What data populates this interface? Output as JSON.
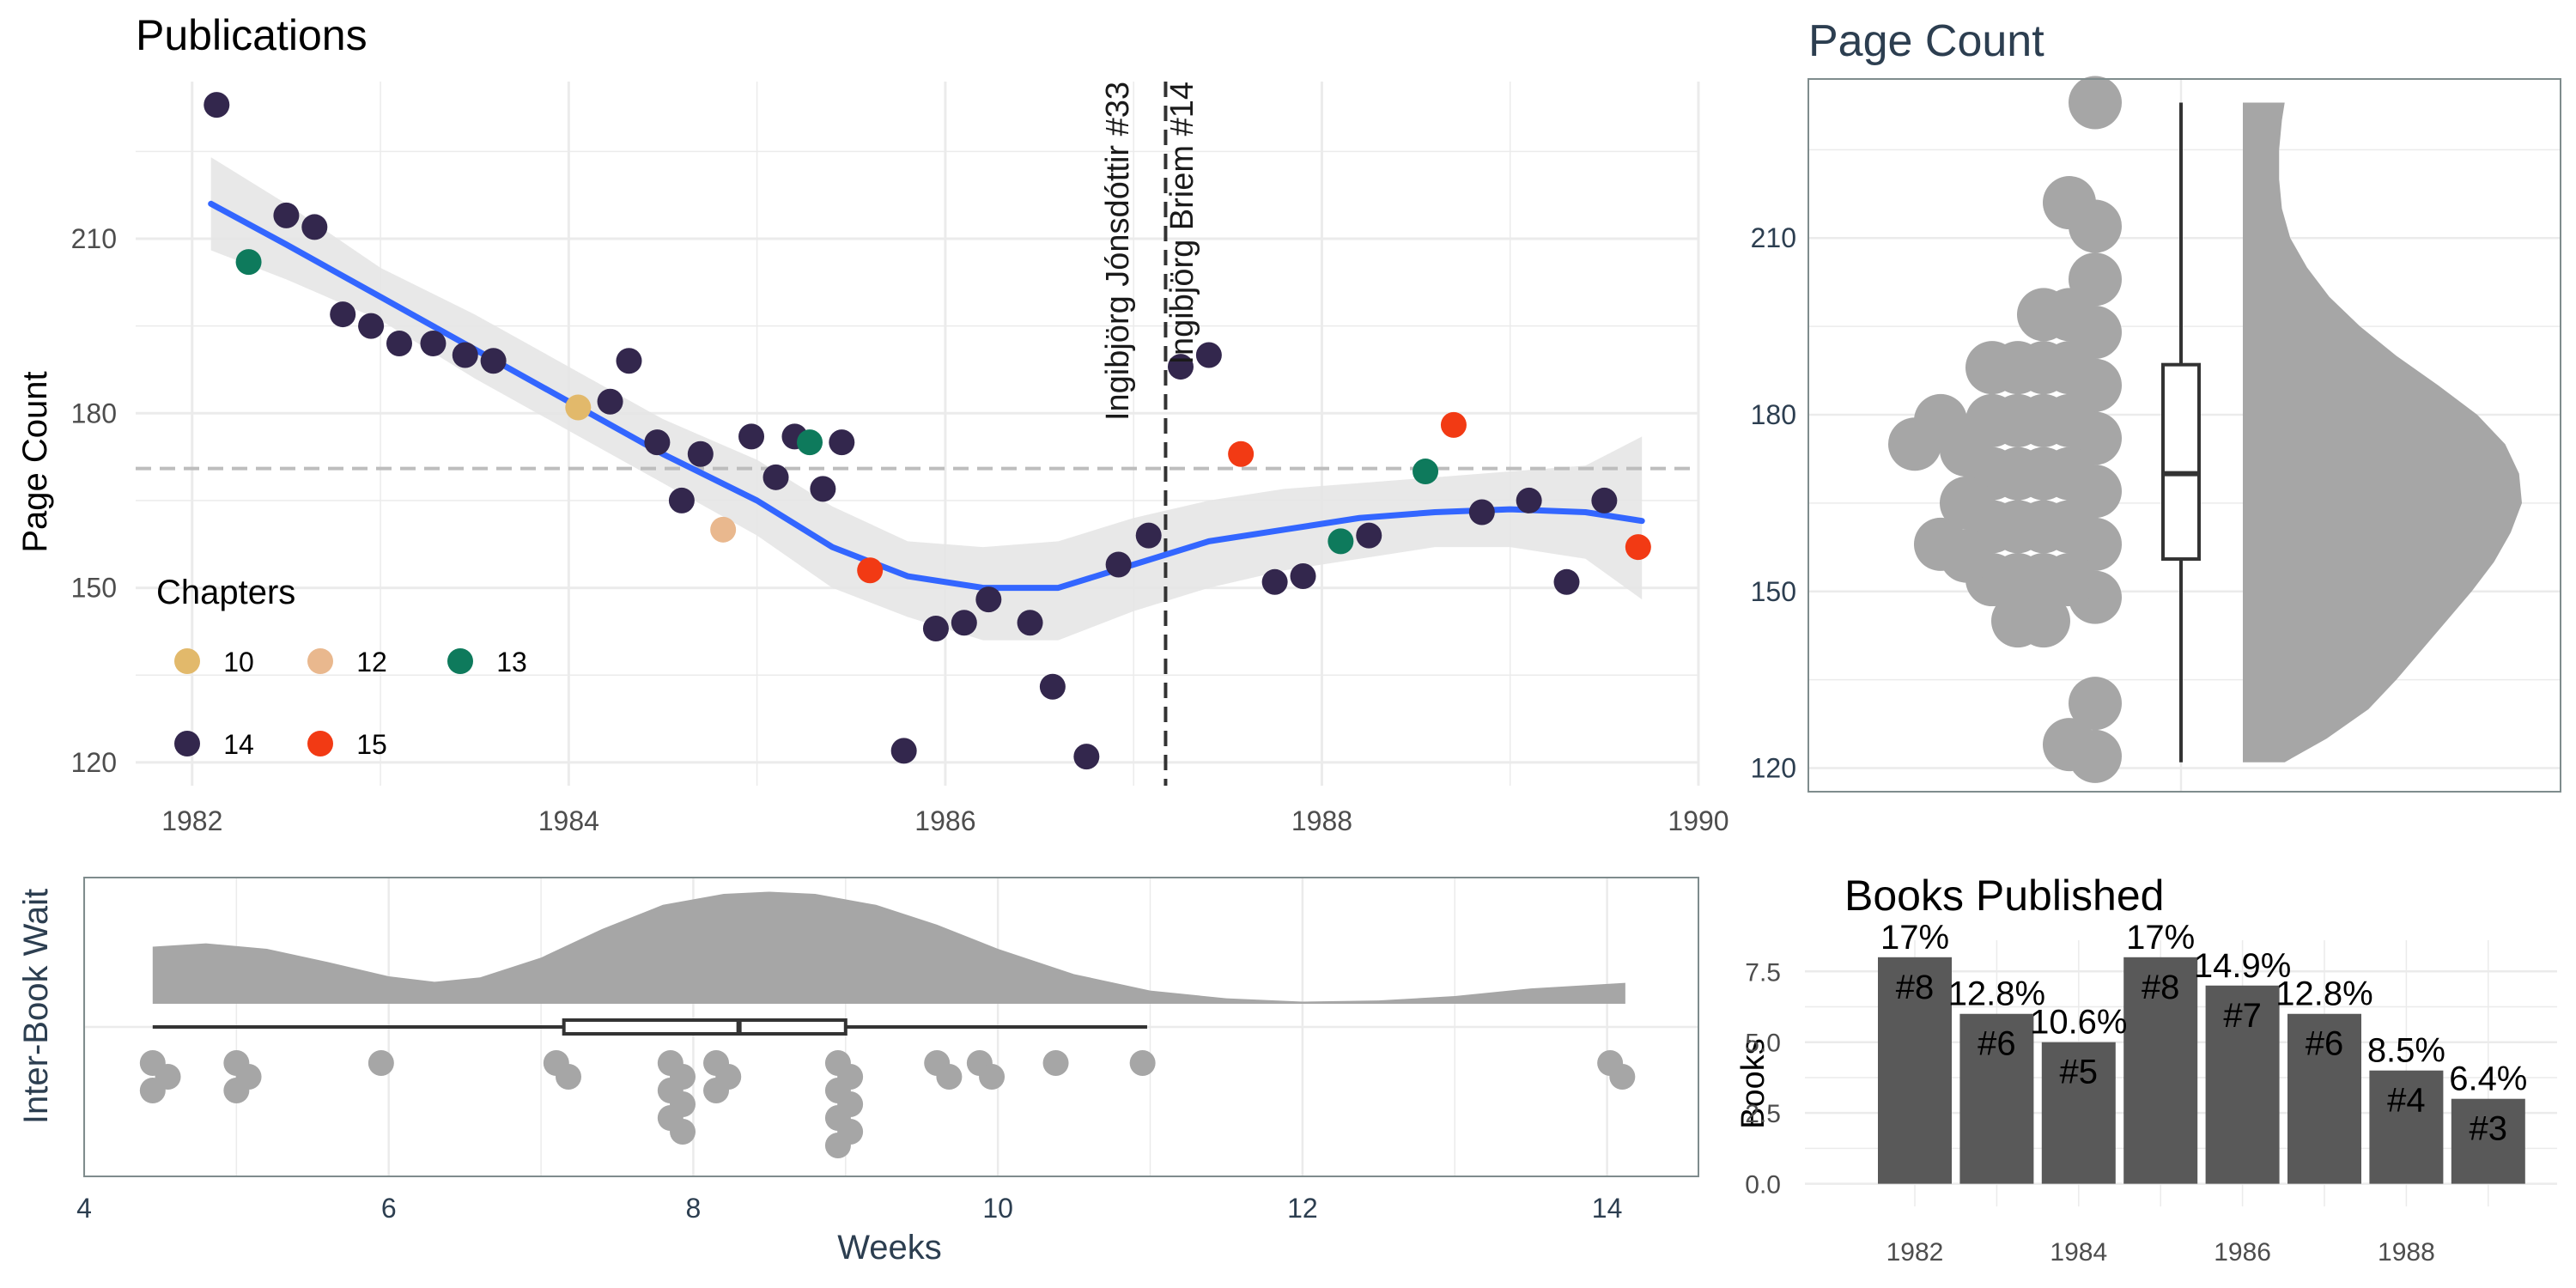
{
  "chart_data": [
    {
      "id": "publications",
      "type": "scatter",
      "title": "Publications",
      "xlabel": "",
      "ylabel": "Page Count",
      "xlim": [
        1981.7,
        1990.0
      ],
      "ylim": [
        116,
        237
      ],
      "x_ticks": [
        1982,
        1984,
        1986,
        1988,
        1990
      ],
      "y_ticks": [
        120,
        150,
        180,
        210
      ],
      "reference_line_y": 170.5,
      "annotation_x": 1987.17,
      "annotations": [
        "Ingibjörg Jónsdóttir #33",
        "Ingibjörg Briem #14"
      ],
      "smooth": {
        "x": [
          1982.1,
          1982.5,
          1983,
          1983.5,
          1984,
          1984.5,
          1985,
          1985.4,
          1985.8,
          1986.2,
          1986.6,
          1987,
          1987.4,
          1987.8,
          1988.2,
          1988.6,
          1989,
          1989.4,
          1989.7
        ],
        "y": [
          216,
          209,
          200,
          191,
          182,
          173,
          165,
          157,
          152,
          150,
          150,
          154,
          158,
          160,
          162,
          163,
          163.5,
          163,
          161.5
        ],
        "lower": [
          208,
          203,
          196,
          186,
          177,
          168,
          159,
          150,
          145,
          141,
          141,
          146,
          150,
          153,
          155,
          157,
          157,
          155,
          148
        ],
        "upper": [
          224,
          216,
          205,
          197,
          188,
          179,
          172,
          164,
          158,
          157,
          158,
          162,
          165,
          167,
          168,
          169,
          170,
          171,
          176
        ]
      },
      "legend": {
        "title": "Chapters",
        "entries": [
          {
            "label": "10",
            "color": "#E2B96B"
          },
          {
            "label": "12",
            "color": "#E9B88E"
          },
          {
            "label": "13",
            "color": "#0E7A5C"
          },
          {
            "label": "14",
            "color": "#33274D"
          },
          {
            "label": "15",
            "color": "#F23A14"
          }
        ]
      },
      "points": [
        {
          "x": 1982.13,
          "y": 233,
          "chapters": "14"
        },
        {
          "x": 1982.3,
          "y": 206,
          "chapters": "13"
        },
        {
          "x": 1982.5,
          "y": 214,
          "chapters": "14"
        },
        {
          "x": 1982.65,
          "y": 212,
          "chapters": "14"
        },
        {
          "x": 1982.8,
          "y": 197,
          "chapters": "14"
        },
        {
          "x": 1982.95,
          "y": 195,
          "chapters": "14"
        },
        {
          "x": 1983.1,
          "y": 192,
          "chapters": "14"
        },
        {
          "x": 1983.28,
          "y": 192,
          "chapters": "14"
        },
        {
          "x": 1983.45,
          "y": 190,
          "chapters": "14"
        },
        {
          "x": 1983.6,
          "y": 189,
          "chapters": "14"
        },
        {
          "x": 1984.05,
          "y": 181,
          "chapters": "10"
        },
        {
          "x": 1984.22,
          "y": 182,
          "chapters": "14"
        },
        {
          "x": 1984.32,
          "y": 189,
          "chapters": "14"
        },
        {
          "x": 1984.47,
          "y": 175,
          "chapters": "14"
        },
        {
          "x": 1984.6,
          "y": 165,
          "chapters": "14"
        },
        {
          "x": 1984.7,
          "y": 173,
          "chapters": "14"
        },
        {
          "x": 1984.82,
          "y": 160,
          "chapters": "12"
        },
        {
          "x": 1984.97,
          "y": 176,
          "chapters": "14"
        },
        {
          "x": 1985.1,
          "y": 169,
          "chapters": "14"
        },
        {
          "x": 1985.2,
          "y": 176,
          "chapters": "14"
        },
        {
          "x": 1985.28,
          "y": 175,
          "chapters": "13"
        },
        {
          "x": 1985.35,
          "y": 167,
          "chapters": "14"
        },
        {
          "x": 1985.45,
          "y": 175,
          "chapters": "14"
        },
        {
          "x": 1985.6,
          "y": 153,
          "chapters": "15"
        },
        {
          "x": 1985.78,
          "y": 122,
          "chapters": "14"
        },
        {
          "x": 1985.95,
          "y": 143,
          "chapters": "14"
        },
        {
          "x": 1986.1,
          "y": 144,
          "chapters": "14"
        },
        {
          "x": 1986.23,
          "y": 148,
          "chapters": "14"
        },
        {
          "x": 1986.45,
          "y": 144,
          "chapters": "14"
        },
        {
          "x": 1986.57,
          "y": 133,
          "chapters": "14"
        },
        {
          "x": 1986.75,
          "y": 121,
          "chapters": "14"
        },
        {
          "x": 1986.92,
          "y": 154,
          "chapters": "14"
        },
        {
          "x": 1987.08,
          "y": 159,
          "chapters": "14"
        },
        {
          "x": 1987.25,
          "y": 188,
          "chapters": "14"
        },
        {
          "x": 1987.4,
          "y": 190,
          "chapters": "14"
        },
        {
          "x": 1987.57,
          "y": 173,
          "chapters": "15"
        },
        {
          "x": 1987.75,
          "y": 151,
          "chapters": "14"
        },
        {
          "x": 1987.9,
          "y": 152,
          "chapters": "14"
        },
        {
          "x": 1988.1,
          "y": 158,
          "chapters": "13"
        },
        {
          "x": 1988.25,
          "y": 159,
          "chapters": "14"
        },
        {
          "x": 1988.55,
          "y": 170,
          "chapters": "13"
        },
        {
          "x": 1988.7,
          "y": 178,
          "chapters": "15"
        },
        {
          "x": 1988.85,
          "y": 163,
          "chapters": "14"
        },
        {
          "x": 1989.1,
          "y": 165,
          "chapters": "14"
        },
        {
          "x": 1989.3,
          "y": 151,
          "chapters": "14"
        },
        {
          "x": 1989.5,
          "y": 165,
          "chapters": "14"
        },
        {
          "x": 1989.68,
          "y": 157,
          "chapters": "15"
        }
      ]
    },
    {
      "id": "page-count",
      "type": "raincloud",
      "title": "Page Count",
      "ylim": [
        116,
        237
      ],
      "y_ticks": [
        120,
        150,
        180,
        210
      ],
      "boxplot": {
        "min": 121,
        "q1": 155.5,
        "median": 170,
        "q3": 188.5,
        "max": 233
      },
      "dots": [
        {
          "col": 0,
          "y": 233
        },
        {
          "col": 0,
          "y": 212
        },
        {
          "col": 0,
          "y": 203
        },
        {
          "col": 0,
          "y": 194
        },
        {
          "col": 0,
          "y": 185
        },
        {
          "col": 0,
          "y": 176
        },
        {
          "col": 0,
          "y": 167
        },
        {
          "col": 0,
          "y": 158
        },
        {
          "col": 0,
          "y": 149
        },
        {
          "col": 0,
          "y": 131
        },
        {
          "col": 0,
          "y": 122
        },
        {
          "col": 1,
          "y": 216
        },
        {
          "col": 1,
          "y": 197
        },
        {
          "col": 1,
          "y": 188
        },
        {
          "col": 1,
          "y": 179
        },
        {
          "col": 1,
          "y": 170
        },
        {
          "col": 1,
          "y": 161
        },
        {
          "col": 1,
          "y": 152
        },
        {
          "col": 1,
          "y": 124
        },
        {
          "col": 2,
          "y": 197
        },
        {
          "col": 2,
          "y": 188
        },
        {
          "col": 2,
          "y": 179
        },
        {
          "col": 2,
          "y": 170
        },
        {
          "col": 2,
          "y": 161
        },
        {
          "col": 2,
          "y": 152
        },
        {
          "col": 2,
          "y": 145
        },
        {
          "col": 3,
          "y": 188
        },
        {
          "col": 3,
          "y": 179
        },
        {
          "col": 3,
          "y": 170
        },
        {
          "col": 3,
          "y": 161
        },
        {
          "col": 3,
          "y": 152
        },
        {
          "col": 3,
          "y": 145
        },
        {
          "col": 4,
          "y": 188
        },
        {
          "col": 4,
          "y": 179
        },
        {
          "col": 4,
          "y": 170
        },
        {
          "col": 4,
          "y": 161
        },
        {
          "col": 4,
          "y": 152
        },
        {
          "col": 5,
          "y": 174
        },
        {
          "col": 5,
          "y": 165
        },
        {
          "col": 5,
          "y": 156
        },
        {
          "col": 6,
          "y": 179
        },
        {
          "col": 6,
          "y": 158
        },
        {
          "col": 7,
          "y": 175
        }
      ],
      "density": [
        {
          "y": 121,
          "d": 0.15
        },
        {
          "y": 125,
          "d": 0.3
        },
        {
          "y": 130,
          "d": 0.45
        },
        {
          "y": 135,
          "d": 0.55
        },
        {
          "y": 140,
          "d": 0.64
        },
        {
          "y": 145,
          "d": 0.73
        },
        {
          "y": 150,
          "d": 0.82
        },
        {
          "y": 155,
          "d": 0.9
        },
        {
          "y": 160,
          "d": 0.96
        },
        {
          "y": 165,
          "d": 1.0
        },
        {
          "y": 170,
          "d": 0.99
        },
        {
          "y": 175,
          "d": 0.94
        },
        {
          "y": 180,
          "d": 0.84
        },
        {
          "y": 185,
          "d": 0.7
        },
        {
          "y": 190,
          "d": 0.55
        },
        {
          "y": 195,
          "d": 0.42
        },
        {
          "y": 200,
          "d": 0.31
        },
        {
          "y": 205,
          "d": 0.23
        },
        {
          "y": 210,
          "d": 0.17
        },
        {
          "y": 215,
          "d": 0.14
        },
        {
          "y": 220,
          "d": 0.13
        },
        {
          "y": 225,
          "d": 0.13
        },
        {
          "y": 230,
          "d": 0.14
        },
        {
          "y": 233,
          "d": 0.15
        }
      ]
    },
    {
      "id": "inter-book-wait",
      "type": "raincloud",
      "xlabel": "Weeks",
      "ylabel": "Inter-Book Wait",
      "xlim": [
        4.0,
        14.6
      ],
      "x_ticks": [
        4,
        6,
        8,
        10,
        12,
        14
      ],
      "boxplot": {
        "min": 4.45,
        "q1": 7.15,
        "median": 8.3,
        "q3": 9.0,
        "max": 10.98
      },
      "dots": [
        {
          "x": 4.45,
          "row": 0
        },
        {
          "x": 4.55,
          "row": 1
        },
        {
          "x": 4.45,
          "row": 2
        },
        {
          "x": 5.0,
          "row": 0
        },
        {
          "x": 5.08,
          "row": 1
        },
        {
          "x": 5.0,
          "row": 2
        },
        {
          "x": 5.95,
          "row": 0
        },
        {
          "x": 7.1,
          "row": 0
        },
        {
          "x": 7.18,
          "row": 1
        },
        {
          "x": 7.85,
          "row": 0
        },
        {
          "x": 7.93,
          "row": 1
        },
        {
          "x": 7.85,
          "row": 2
        },
        {
          "x": 7.93,
          "row": 3
        },
        {
          "x": 7.85,
          "row": 4
        },
        {
          "x": 7.93,
          "row": 5
        },
        {
          "x": 8.15,
          "row": 0
        },
        {
          "x": 8.23,
          "row": 1
        },
        {
          "x": 8.15,
          "row": 2
        },
        {
          "x": 8.95,
          "row": 0
        },
        {
          "x": 9.03,
          "row": 1
        },
        {
          "x": 8.95,
          "row": 2
        },
        {
          "x": 9.03,
          "row": 3
        },
        {
          "x": 8.95,
          "row": 4
        },
        {
          "x": 9.03,
          "row": 5
        },
        {
          "x": 8.95,
          "row": 6
        },
        {
          "x": 9.6,
          "row": 0
        },
        {
          "x": 9.68,
          "row": 1
        },
        {
          "x": 9.88,
          "row": 0
        },
        {
          "x": 9.96,
          "row": 1
        },
        {
          "x": 10.38,
          "row": 0
        },
        {
          "x": 10.95,
          "row": 0
        },
        {
          "x": 14.02,
          "row": 0
        },
        {
          "x": 14.1,
          "row": 1
        }
      ],
      "density": [
        {
          "x": 4.45,
          "d": 0.52
        },
        {
          "x": 4.8,
          "d": 0.55
        },
        {
          "x": 5.2,
          "d": 0.5
        },
        {
          "x": 5.6,
          "d": 0.38
        },
        {
          "x": 6.0,
          "d": 0.25
        },
        {
          "x": 6.3,
          "d": 0.2
        },
        {
          "x": 6.6,
          "d": 0.24
        },
        {
          "x": 7.0,
          "d": 0.42
        },
        {
          "x": 7.4,
          "d": 0.68
        },
        {
          "x": 7.8,
          "d": 0.9
        },
        {
          "x": 8.2,
          "d": 1.0
        },
        {
          "x": 8.5,
          "d": 1.02
        },
        {
          "x": 8.8,
          "d": 1.0
        },
        {
          "x": 9.2,
          "d": 0.9
        },
        {
          "x": 9.6,
          "d": 0.72
        },
        {
          "x": 10.0,
          "d": 0.5
        },
        {
          "x": 10.5,
          "d": 0.27
        },
        {
          "x": 11.0,
          "d": 0.12
        },
        {
          "x": 11.5,
          "d": 0.05
        },
        {
          "x": 12.0,
          "d": 0.02
        },
        {
          "x": 12.5,
          "d": 0.03
        },
        {
          "x": 13.0,
          "d": 0.07
        },
        {
          "x": 13.5,
          "d": 0.14
        },
        {
          "x": 14.12,
          "d": 0.19
        }
      ]
    },
    {
      "id": "books-published",
      "type": "bar",
      "title": "Books Published",
      "xlabel": "",
      "ylabel": "Books",
      "ylim": [
        -0.8,
        8.6
      ],
      "y_ticks": [
        0.0,
        2.5,
        5.0,
        7.5
      ],
      "y_tick_labels": [
        "0.0",
        "2.5",
        "5.0",
        "7.5"
      ],
      "x_ticks": [
        1982,
        1984,
        1986,
        1988
      ],
      "categories": [
        1982,
        1983,
        1984,
        1985,
        1986,
        1987,
        1988,
        1989
      ],
      "values": [
        8,
        6,
        5,
        8,
        7,
        6,
        4,
        3
      ],
      "count_labels": [
        "#8",
        "#6",
        "#5",
        "#8",
        "#7",
        "#6",
        "#4",
        "#3"
      ],
      "percent_labels": [
        "17%",
        "12.8%",
        "10.6%",
        "17%",
        "14.9%",
        "12.8%",
        "8.5%",
        "6.4%"
      ]
    }
  ],
  "colors": {
    "smooth_line": "#3366FF",
    "ribbon": "#E6E6E6",
    "grid": "#EBEBEB",
    "cloud": "#A6A6A6",
    "bar": "#595959",
    "title_blue": "#2C3E50",
    "axis_text": "#4D4D4D"
  }
}
